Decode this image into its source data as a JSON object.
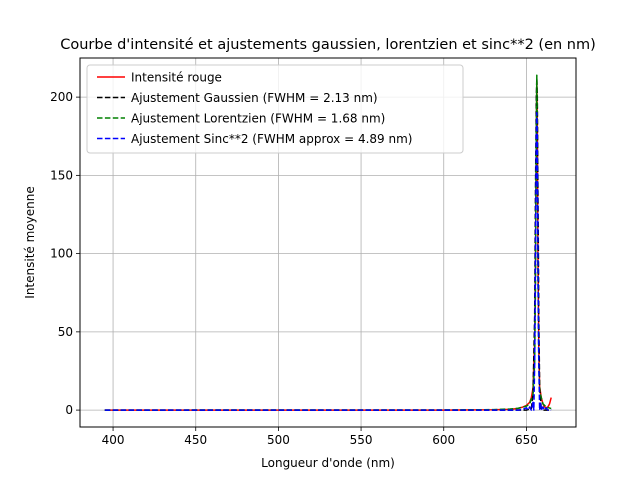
{
  "chart_data": {
    "type": "line",
    "title": "Courbe d'intensité et ajustements gaussien, lorentzien et sinc**2 (en nm)",
    "xlabel": "Longueur d'onde (nm)",
    "ylabel": "Intensité moyenne",
    "xlim": [
      380,
      680
    ],
    "ylim": [
      -10.8,
      225
    ],
    "xticks": [
      400,
      450,
      500,
      550,
      600,
      650
    ],
    "yticks": [
      0,
      50,
      100,
      150,
      200
    ],
    "xtick_labels": [
      "400",
      "450",
      "500",
      "550",
      "600",
      "650"
    ],
    "ytick_labels": [
      "0",
      "50",
      "100",
      "150",
      "200"
    ],
    "grid": true,
    "legend_position": "top-left",
    "series": [
      {
        "name": "Intensité rouge",
        "color": "#ff0000",
        "style": "solid",
        "x": [
          395,
          600,
          630,
          640,
          645,
          648,
          650,
          652,
          653,
          654,
          655,
          655.5,
          656,
          656.3,
          656.6,
          657,
          657.5,
          658,
          659,
          660,
          661,
          662,
          663,
          664,
          664.5,
          665
        ],
        "y": [
          0,
          0,
          0.2,
          0.5,
          1,
          2,
          3,
          5,
          8,
          14,
          45,
          100,
          175,
          210,
          185,
          95,
          40,
          15,
          8,
          4,
          2,
          1.5,
          2,
          4,
          6,
          8
        ]
      },
      {
        "name": "Ajustement Gaussien (FWHM = 2.13 nm)",
        "color": "#000000",
        "style": "dashed",
        "x": [
          395,
          650,
          653,
          654,
          655,
          655.5,
          656,
          656.3,
          656.6,
          657,
          657.5,
          658,
          659,
          660,
          665
        ],
        "y": [
          0,
          0,
          1,
          10,
          60,
          140,
          200,
          212,
          200,
          140,
          60,
          15,
          1,
          0,
          0
        ]
      },
      {
        "name": "Ajustement Lorentzien (FWHM = 1.68 nm)",
        "color": "#008000",
        "style": "dashed",
        "x": [
          395,
          600,
          630,
          640,
          645,
          650,
          652,
          654,
          655,
          655.5,
          656,
          656.3,
          656.6,
          657,
          657.5,
          658,
          660,
          662,
          665
        ],
        "y": [
          0,
          0.1,
          0.3,
          0.7,
          1.2,
          2.5,
          4,
          10,
          30,
          80,
          180,
          214,
          180,
          80,
          30,
          12,
          4,
          2,
          1
        ]
      },
      {
        "name": "Ajustement Sinc**2 (FWHM approx = 4.89 nm)",
        "color": "#0000ff",
        "style": "dashed",
        "x": [
          395,
          645,
          648,
          650,
          651,
          652,
          653,
          654,
          654.5,
          655,
          655.5,
          656,
          656.3,
          656.6,
          657,
          657.5,
          658,
          658.5,
          659,
          660,
          661,
          662,
          663,
          664,
          665
        ],
        "y": [
          0,
          0,
          0.5,
          1.5,
          0,
          2,
          0,
          5,
          0,
          30,
          100,
          175,
          190,
          175,
          100,
          30,
          0,
          5,
          0,
          2,
          0,
          1.5,
          0,
          0.5,
          0
        ]
      }
    ]
  }
}
